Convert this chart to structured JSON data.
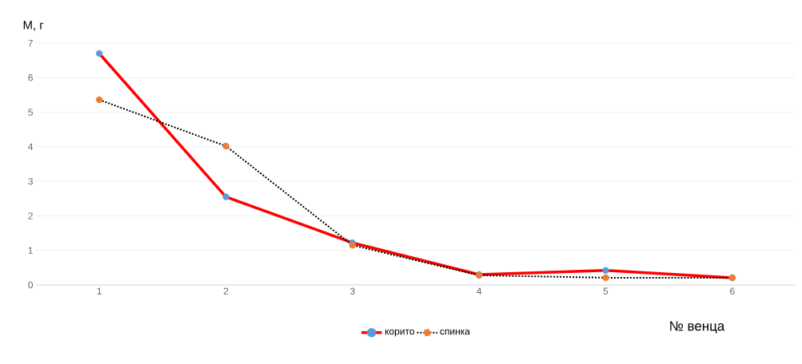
{
  "chart_data": {
    "type": "line",
    "xlabel": "№ венца",
    "ylabel": "М, г",
    "categories": [
      "1",
      "2",
      "3",
      "4",
      "5",
      "6"
    ],
    "series": [
      {
        "name": "корито",
        "color": "#ff0000",
        "line_style": "solid",
        "colors": [
          "#5b9bd5",
          "#5b9bd5",
          "#5b9bd5",
          "#5b9bd5",
          "#5b9bd5",
          "#5b9bd5"
        ],
        "values": [
          6.7,
          2.55,
          1.22,
          0.3,
          0.42,
          0.21
        ]
      },
      {
        "name": "спинка",
        "color": "#000000",
        "line_style": "dotted",
        "colors": [
          "#ed7d31",
          "#ed7d31",
          "#ed7d31",
          "#ed7d31",
          "#ed7d31",
          "#ed7d31"
        ],
        "values": [
          5.36,
          4.02,
          1.15,
          0.28,
          0.21,
          0.21
        ]
      }
    ],
    "ylim": [
      0,
      7
    ],
    "yticks": [
      0,
      1,
      2,
      3,
      4,
      5,
      6,
      7
    ],
    "grid": "y",
    "legend": "bottom",
    "marker": "circle"
  }
}
